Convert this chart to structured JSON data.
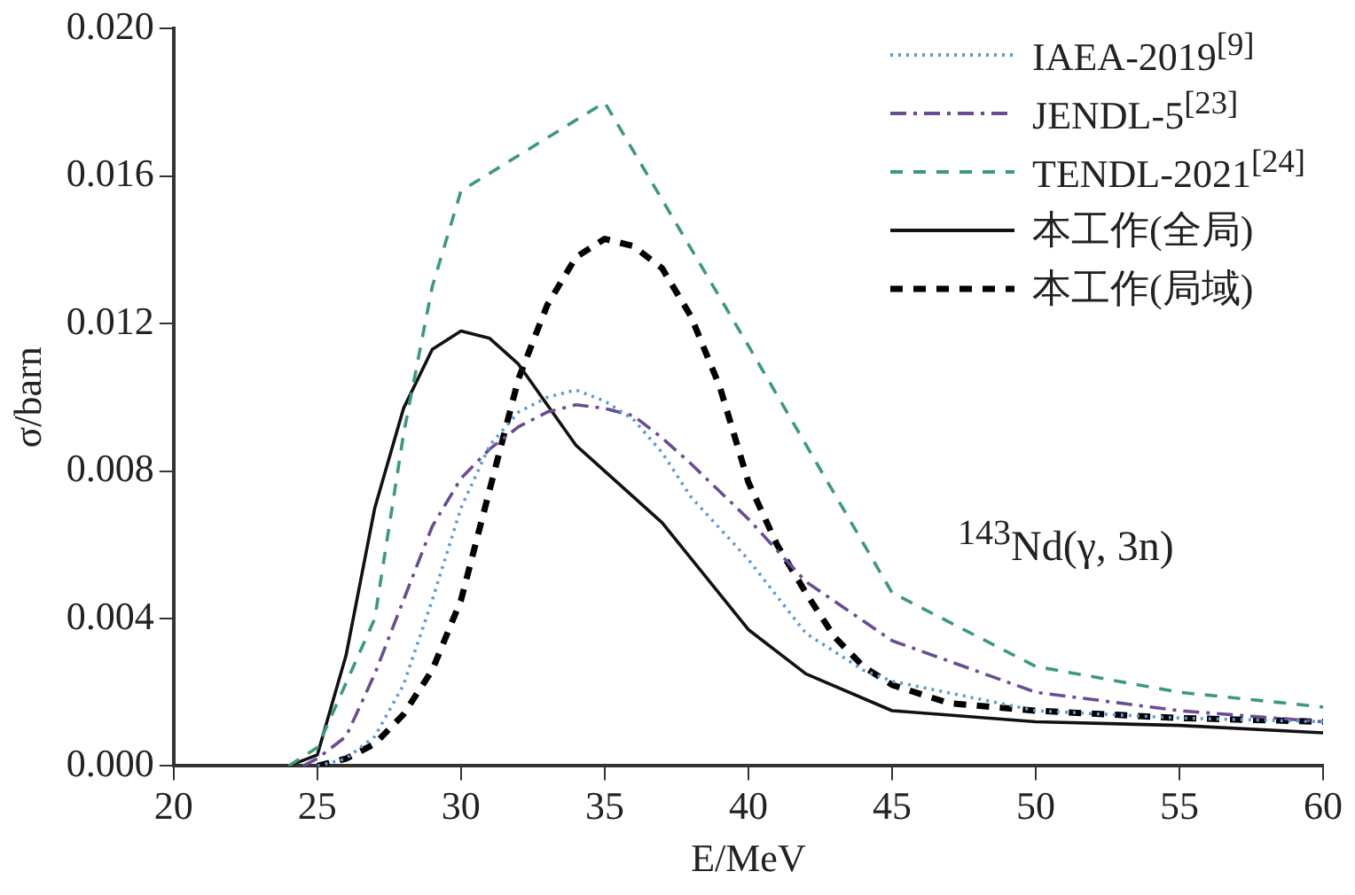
{
  "chart_data": {
    "type": "line",
    "xlabel": "E/MeV",
    "ylabel": "σ/barn",
    "xlim": [
      20,
      60
    ],
    "xticks": [
      20,
      25,
      30,
      35,
      40,
      45,
      50,
      55,
      60
    ],
    "ylim": [
      0,
      0.02
    ],
    "yticks": [
      {
        "value": 0,
        "label": "0.000"
      },
      {
        "value": 0.004,
        "label": "0.004"
      },
      {
        "value": 0.008,
        "label": "0.008"
      },
      {
        "value": 0.012,
        "label": "0.012"
      },
      {
        "value": 0.016,
        "label": "0.016"
      },
      {
        "value": 0.02,
        "label": "0.020"
      }
    ],
    "grid": false,
    "legend": "top right",
    "marker": "none",
    "annotations": [
      "$^{143}$Nd(γ, 3n)"
    ],
    "series": [
      {
        "name": "IAEA-2019$^{[9]}$",
        "color": "#5b9bd5",
        "line_style": "dotted",
        "x": [
          25,
          26,
          27,
          28,
          29,
          30,
          31,
          32,
          33,
          34,
          35,
          36,
          37,
          38,
          40,
          42,
          44,
          45,
          50,
          55,
          60
        ],
        "values": [
          0,
          0.0002,
          0.0008,
          0.0022,
          0.0045,
          0.007,
          0.0087,
          0.0096,
          0.01,
          0.0102,
          0.0099,
          0.0094,
          0.0085,
          0.0073,
          0.0056,
          0.0036,
          0.0026,
          0.0023,
          0.0015,
          0.0013,
          0.0012
        ]
      },
      {
        "name": "JENDL-5$^{[23]}$",
        "color": "#6a4c93",
        "line_style": "dashdot",
        "x": [
          24.5,
          25,
          26,
          27,
          28,
          29,
          30,
          31,
          32,
          33,
          34,
          35,
          36,
          37,
          38,
          40,
          42,
          45,
          50,
          55,
          60
        ],
        "values": [
          0,
          0.0002,
          0.0008,
          0.0025,
          0.0045,
          0.0065,
          0.0078,
          0.0086,
          0.0092,
          0.0096,
          0.0098,
          0.0097,
          0.0095,
          0.0089,
          0.0082,
          0.0067,
          0.005,
          0.0034,
          0.002,
          0.0015,
          0.0012
        ]
      },
      {
        "name": "TENDL-2021$^{[24]}$",
        "color": "#3a9a7a",
        "line_style": "dashed",
        "x": [
          24,
          25,
          27,
          28,
          29,
          30,
          35,
          40,
          45,
          50,
          55,
          60
        ],
        "values": [
          0,
          0.0005,
          0.004,
          0.009,
          0.013,
          0.0156,
          0.018,
          0.0114,
          0.0047,
          0.0027,
          0.002,
          0.0016
        ]
      },
      {
        "name": "本工作(全局)",
        "color": "#111111",
        "line_style": "solid",
        "x": [
          24,
          25,
          26,
          27,
          28,
          29,
          30,
          31,
          32,
          33,
          34,
          35,
          37,
          40,
          42,
          45,
          50,
          55,
          60
        ],
        "values": [
          0,
          0.0003,
          0.003,
          0.007,
          0.0097,
          0.0113,
          0.0118,
          0.0116,
          0.0109,
          0.0098,
          0.0087,
          0.008,
          0.0066,
          0.0037,
          0.0025,
          0.0015,
          0.0012,
          0.0011,
          0.0009
        ]
      },
      {
        "name": "本工作(局域)",
        "color": "#000000",
        "line_style": "dashed",
        "x": [
          25,
          26,
          27,
          28,
          29,
          30,
          31,
          32,
          33,
          34,
          35,
          36,
          37,
          38,
          39,
          40,
          41,
          42,
          43,
          44,
          45,
          47,
          50,
          55,
          60
        ],
        "values": [
          0,
          0.0002,
          0.0006,
          0.0014,
          0.0026,
          0.0045,
          0.0075,
          0.0105,
          0.0125,
          0.0138,
          0.0143,
          0.0141,
          0.0135,
          0.0122,
          0.0103,
          0.0077,
          0.006,
          0.0047,
          0.0035,
          0.0027,
          0.0022,
          0.0017,
          0.0015,
          0.0013,
          0.0012
        ]
      }
    ]
  }
}
